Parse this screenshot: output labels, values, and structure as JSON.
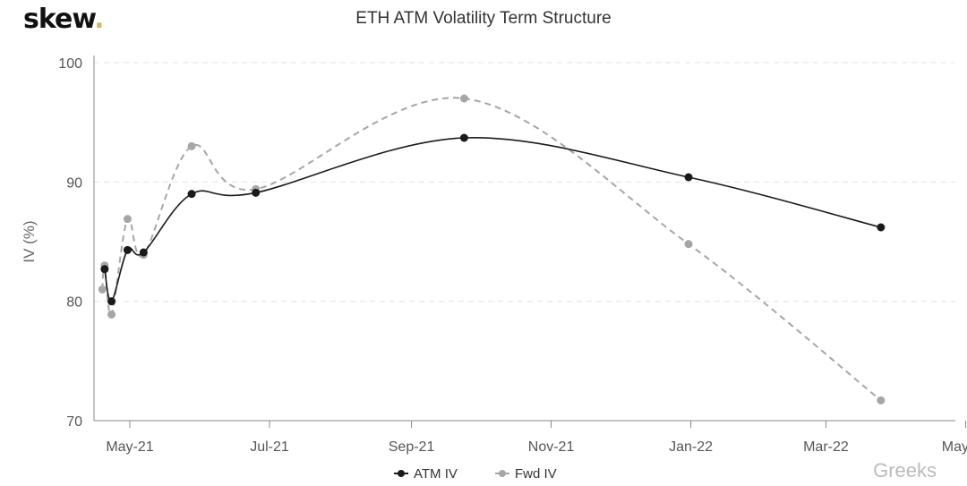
{
  "logo": "skew",
  "watermark": "Greeks",
  "chart_data": {
    "type": "line",
    "title": "ETH ATM Volatility Term Structure",
    "xlabel": "",
    "ylabel": "IV (%)",
    "ylim": [
      70,
      100
    ],
    "yticks": [
      70,
      80,
      90,
      100
    ],
    "xlim": [
      "2021-04-13",
      "2022-05-10"
    ],
    "xticks": [
      [
        "2021-05-01",
        "May-21"
      ],
      [
        "2021-07-01",
        "Jul-21"
      ],
      [
        "2021-09-01",
        "Sep-21"
      ],
      [
        "2021-11-01",
        "Nov-21"
      ],
      [
        "2022-01-01",
        "Jan-22"
      ],
      [
        "2022-03-01",
        "Mar-22"
      ],
      [
        "2022-05-01",
        "May-22"
      ]
    ],
    "legend_position": "bottom",
    "grid": true,
    "series": [
      {
        "name": "ATM IV",
        "color": "#1a1a1a",
        "dashed": false,
        "x": [
          "2021-04-20",
          "2021-04-23",
          "2021-04-30",
          "2021-05-07",
          "2021-05-28",
          "2021-06-25",
          "2021-09-24",
          "2021-12-31",
          "2022-03-25"
        ],
        "values": [
          82.7,
          80.0,
          84.3,
          84.1,
          89.0,
          89.1,
          93.7,
          90.4,
          86.2
        ]
      },
      {
        "name": "Fwd IV",
        "color": "#a6a6a6",
        "dashed": true,
        "x": [
          "2021-04-19",
          "2021-04-20",
          "2021-04-23",
          "2021-04-30",
          "2021-05-07",
          "2021-05-28",
          "2021-06-25",
          "2021-09-24",
          "2021-12-31",
          "2022-03-25"
        ],
        "values": [
          81.0,
          83.0,
          78.9,
          86.9,
          83.9,
          93.0,
          89.4,
          97.0,
          84.8,
          71.7
        ]
      }
    ]
  }
}
